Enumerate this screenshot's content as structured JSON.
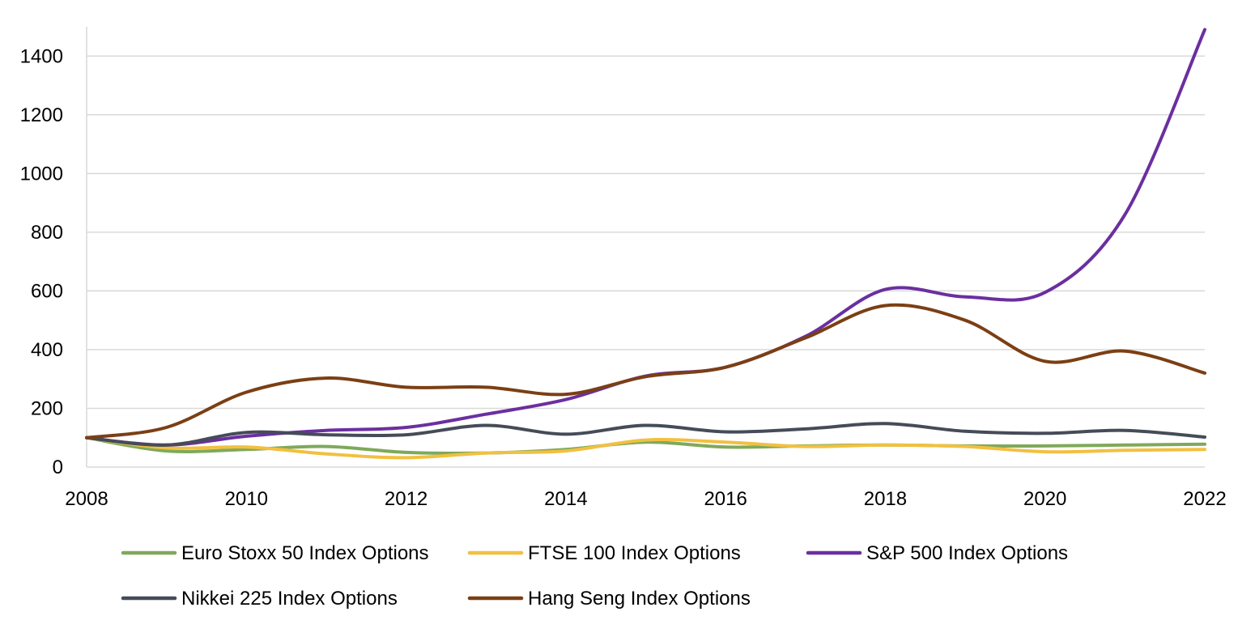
{
  "chart_data": {
    "type": "line",
    "title": "",
    "xlabel": "",
    "ylabel": "",
    "x": [
      2008,
      2009,
      2010,
      2011,
      2012,
      2013,
      2014,
      2015,
      2016,
      2017,
      2018,
      2019,
      2020,
      2021,
      2022
    ],
    "xlim": [
      2008,
      2022
    ],
    "ylim": [
      0,
      1500
    ],
    "x_ticks": [
      2008,
      2010,
      2012,
      2014,
      2016,
      2018,
      2020,
      2022
    ],
    "y_ticks": [
      0,
      200,
      400,
      600,
      800,
      1000,
      1200,
      1400
    ],
    "grid": "horizontal",
    "smooth": true,
    "legend_position": "bottom",
    "series": [
      {
        "name": "Euro Stoxx 50 Index Options",
        "color": "#7fa95a",
        "values": [
          100,
          55,
          60,
          70,
          50,
          48,
          60,
          85,
          68,
          72,
          75,
          72,
          72,
          75,
          78
        ]
      },
      {
        "name": "FTSE 100 Index Options",
        "color": "#f2c040",
        "values": [
          100,
          65,
          68,
          45,
          32,
          48,
          55,
          92,
          85,
          70,
          75,
          70,
          52,
          57,
          60
        ]
      },
      {
        "name": "S&P 500 Index Options",
        "color": "#6b2fa0",
        "values": [
          100,
          75,
          105,
          125,
          135,
          180,
          230,
          310,
          340,
          445,
          605,
          580,
          595,
          860,
          1490
        ]
      },
      {
        "name": "Nikkei 225 Index Options",
        "color": "#454c58",
        "values": [
          100,
          75,
          118,
          110,
          110,
          142,
          112,
          142,
          120,
          130,
          148,
          122,
          115,
          125,
          102
        ]
      },
      {
        "name": "Hang Seng Index Options",
        "color": "#7b3f14",
        "values": [
          100,
          135,
          255,
          303,
          272,
          272,
          248,
          308,
          340,
          440,
          550,
          500,
          360,
          395,
          320
        ]
      }
    ]
  }
}
